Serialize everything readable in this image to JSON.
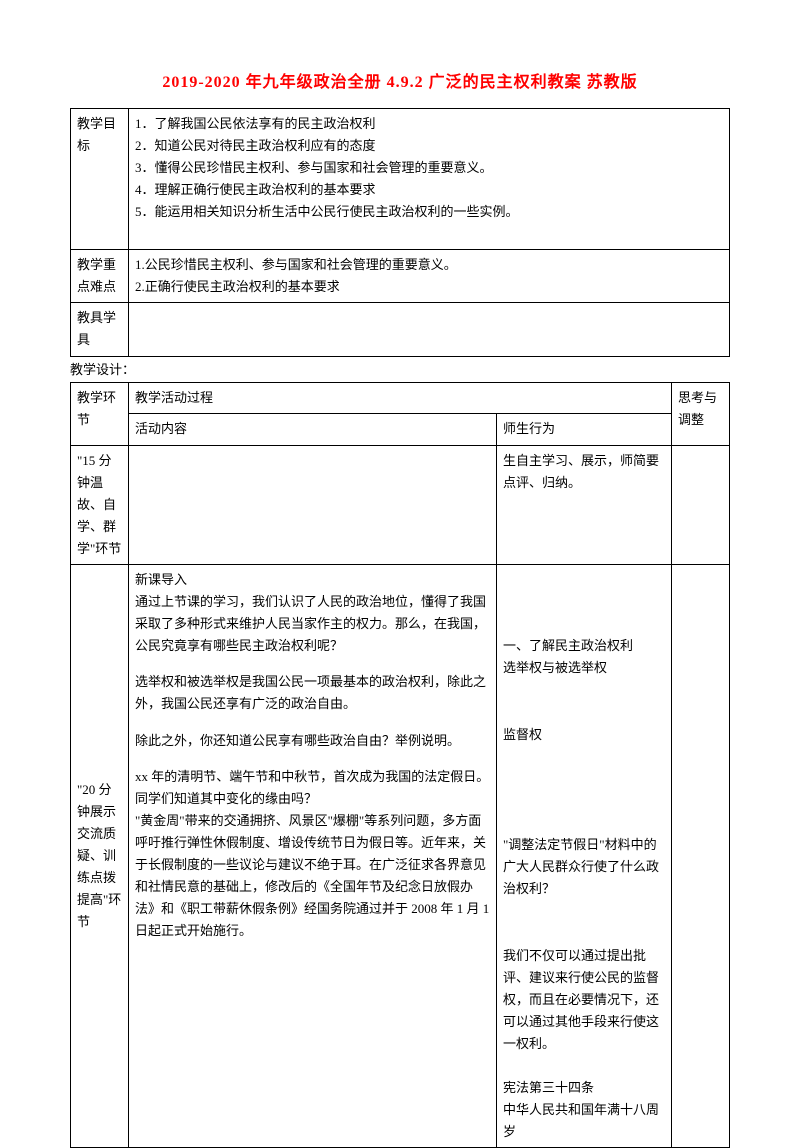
{
  "title": "2019-2020 年九年级政治全册 4.9.2 广泛的民主权利教案 苏教版",
  "labels": {
    "goal": "教学目标",
    "key": "教学重点难点",
    "tool": "教具学具",
    "design": "教学设计：",
    "stage": "教学环节",
    "process": "教学活动过程",
    "content": "活动内容",
    "behavior": "师生行为",
    "think": "思考与调整"
  },
  "goals": {
    "g1": "1．了解我国公民依法享有的民主政治权利",
    "g2": "2．知道公民对待民主政治权利应有的态度",
    "g3": "3．懂得公民珍惜民主权利、参与国家和社会管理的重要意义。",
    "g4": "4．理解正确行使民主政治权利的基本要求",
    "g5": "5．能运用相关知识分析生活中公民行使民主政治权利的一些实例。"
  },
  "key": {
    "k1": "1.公民珍惜民主权利、参与国家和社会管理的重要意义。",
    "k2": "2.正确行使民主政治权利的基本要求"
  },
  "stage15": "\"15 分钟温故、自学、群学\"环节",
  "stage20": "\"20 分钟展示交流质疑、训练点拨提高\"环节",
  "behavior15": "生自主学习、展示，师简要点评、归纳。",
  "content20": {
    "p1": "新课导入",
    "p2": "通过上节课的学习，我们认识了人民的政治地位，懂得了我国采取了多种形式来维护人民当家作主的权力。那么，在我国，公民究竟享有哪些民主政治权利呢？",
    "p3": "选举权和被选举权是我国公民一项最基本的政治权利，除此之外，我国公民还享有广泛的政治自由。",
    "p4": "除此之外，你还知道公民享有哪些政治自由？举例说明。",
    "p5": "xx 年的清明节、端午节和中秋节，首次成为我国的法定假日。同学们知道其中变化的缘由吗？",
    "p6": "\"黄金周\"带来的交通拥挤、风景区\"爆棚\"等系列问题，多方面呼吁推行弹性休假制度、增设传统节日为假日等。近年来，关于长假制度的一些议论与建议不绝于耳。在广泛征求各界意见和社情民意的基础上，修改后的《全国年节及纪念日放假办法》和《职工带薪休假条例》经国务院通过并于 2008 年 1 月 1 日起正式开始施行。"
  },
  "behavior20": {
    "b1": "一、了解民主政治权利",
    "b2": "选举权与被选举权",
    "b3": "监督权",
    "b4": "\"调整法定节假日\"材料中的广大人民群众行使了什么政治权利？",
    "b5": "我们不仅可以通过提出批评、建议来行使公民的监督权，而且在必要情况下，还可以通过其他手段来行使这一权利。",
    "b6": "宪法第三十四条",
    "b7": "中华人民共和国年满十八周岁"
  }
}
